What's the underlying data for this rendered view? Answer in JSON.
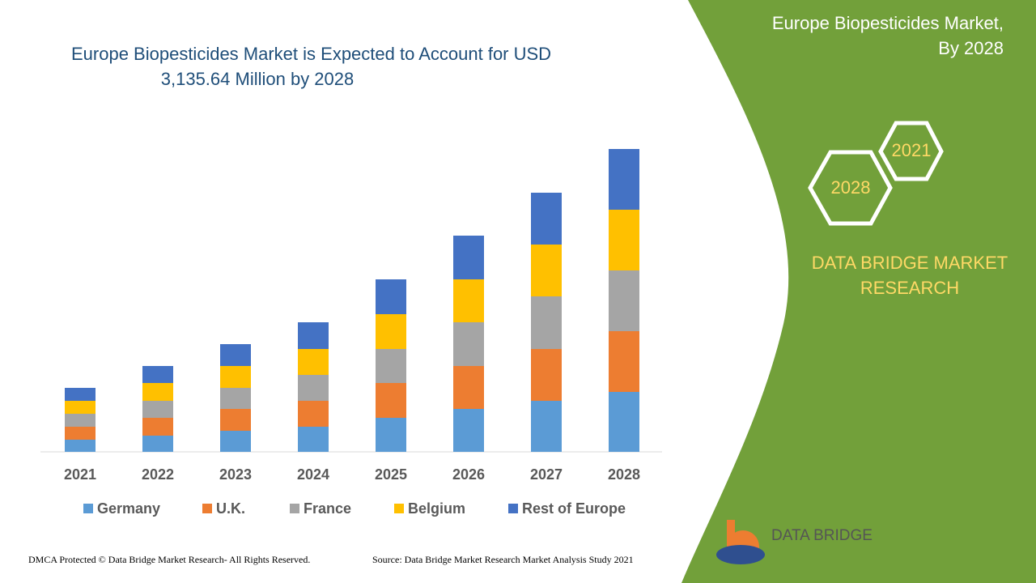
{
  "chart_data": {
    "type": "stacked-bar",
    "title": [
      "Europe Biopesticides Market is Expected to Account for USD",
      "3,135.64 Million by 2028"
    ],
    "categories": [
      "2021",
      "2022",
      "2023",
      "2024",
      "2025",
      "2026",
      "2027",
      "2028"
    ],
    "series": [
      {
        "name": "Germany",
        "color": "#5b9bd5",
        "values": [
          15,
          20,
          26,
          31,
          42,
          53,
          63,
          74
        ]
      },
      {
        "name": "U.K.",
        "color": "#ed7d31",
        "values": [
          16,
          22,
          27,
          32,
          43,
          53,
          64,
          75
        ]
      },
      {
        "name": "France",
        "color": "#a5a5a5",
        "values": [
          16,
          21,
          26,
          32,
          42,
          54,
          65,
          75
        ]
      },
      {
        "name": "Belgium",
        "color": "#ffc000",
        "values": [
          16,
          22,
          27,
          32,
          43,
          53,
          64,
          75
        ]
      },
      {
        "name": "Rest of Europe",
        "color": "#4472c4",
        "values": [
          16,
          21,
          27,
          33,
          43,
          54,
          64,
          75
        ]
      }
    ],
    "ylim": [
      0,
      400
    ]
  },
  "panel": {
    "title": [
      "Europe Biopesticides Market,",
      "By 2028"
    ],
    "hex_years": [
      "2021",
      "2028"
    ],
    "brand": [
      "DATA BRIDGE MARKET",
      "RESEARCH"
    ]
  },
  "logo": {
    "name": "DATA BRIDGE"
  },
  "footer": {
    "left": "DMCA Protected © Data Bridge Market Research- All Rights Reserved.",
    "right": "Source: Data Bridge Market Research Market Analysis Study 2021"
  }
}
